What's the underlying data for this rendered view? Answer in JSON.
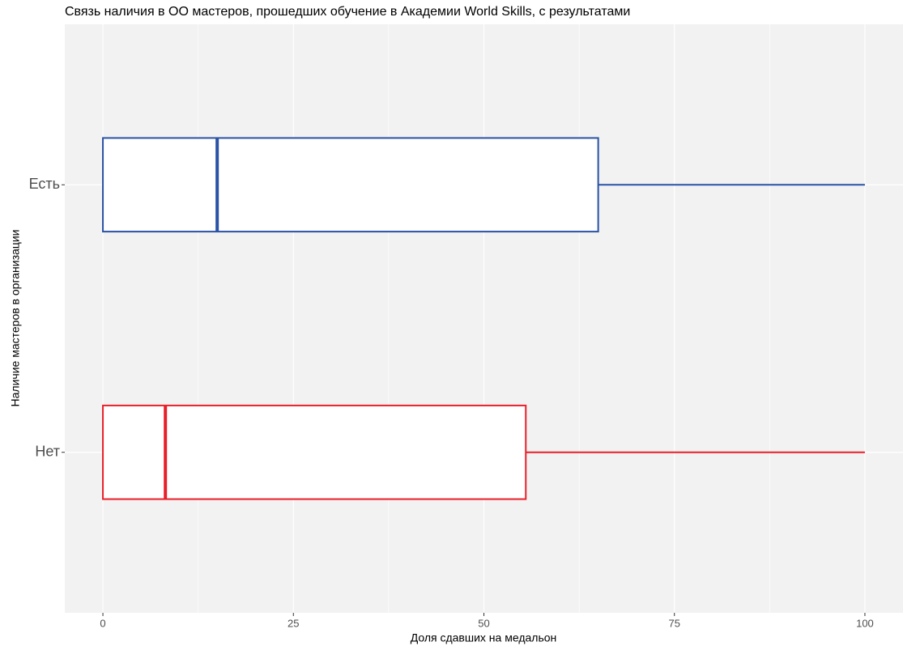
{
  "chart_data": {
    "type": "boxplot",
    "title": "Связь наличия в ОО мастеров, прошедших обучение в Академии World Skills, с результатами",
    "x_label": "Доля сдавших на медальон",
    "y_label": "Наличие мастеров в организации",
    "categories": [
      "Нет",
      "Есть"
    ],
    "min": [
      0,
      0
    ],
    "q1": [
      0,
      0
    ],
    "median": [
      8.2,
      15
    ],
    "q3": [
      55.5,
      65
    ],
    "max": [
      100,
      100
    ],
    "colors": [
      "#e8202a",
      "#2a52a5"
    ],
    "xlim": [
      -5,
      105
    ],
    "xticks": [
      0,
      25,
      50,
      75,
      100
    ],
    "x_minor_grid": [
      12.5,
      37.5,
      62.5,
      87.5
    ],
    "grid": true
  }
}
